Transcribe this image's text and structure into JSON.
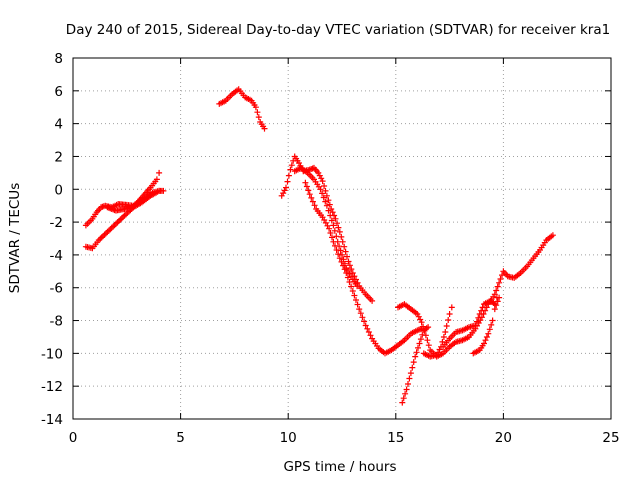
{
  "chart_data": {
    "type": "scatter",
    "title": "Day 240 of 2015, Sidereal Day-to-day VTEC variation (SDTVAR) for receiver kra1",
    "xlabel": "GPS time / hours",
    "ylabel": "SDTVAR / TECUs",
    "xlim": [
      0,
      25
    ],
    "ylim": [
      -14,
      8
    ],
    "xticks": [
      0,
      5,
      10,
      15,
      20,
      25
    ],
    "yticks": [
      -14,
      -12,
      -10,
      -8,
      -6,
      -4,
      -2,
      0,
      2,
      4,
      6,
      8
    ],
    "grid": true,
    "grid_style": "dotted",
    "legend": "none",
    "marker": "plus",
    "color": "#ff0000",
    "series": [
      {
        "segments": [
          [
            [
              0.6,
              -3.5
            ],
            [
              0.9,
              -3.6
            ],
            [
              1.2,
              -3.1
            ],
            [
              1.6,
              -2.6
            ],
            [
              2.0,
              -2.1
            ],
            [
              2.4,
              -1.6
            ],
            [
              2.8,
              -1.1
            ],
            [
              3.2,
              -0.5
            ],
            [
              3.6,
              0.1
            ],
            [
              3.9,
              0.6
            ],
            [
              4.0,
              1.0
            ]
          ],
          [
            [
              0.6,
              -2.2
            ],
            [
              0.9,
              -1.8
            ],
            [
              1.1,
              -1.4
            ],
            [
              1.3,
              -1.1
            ],
            [
              1.5,
              -1.0
            ],
            [
              1.8,
              -1.1
            ],
            [
              2.1,
              -0.9
            ],
            [
              2.5,
              -0.95
            ],
            [
              2.8,
              -1.0
            ],
            [
              3.1,
              -0.7
            ],
            [
              3.4,
              -0.5
            ],
            [
              3.7,
              -0.2
            ],
            [
              4.0,
              -0.1
            ],
            [
              4.2,
              -0.1
            ]
          ],
          [
            [
              1.6,
              -1.1
            ],
            [
              2.0,
              -1.3
            ],
            [
              2.4,
              -1.2
            ],
            [
              2.8,
              -1.1
            ],
            [
              3.2,
              -0.8
            ],
            [
              3.6,
              -0.4
            ],
            [
              4.0,
              -0.1
            ]
          ],
          [
            [
              6.8,
              5.2
            ],
            [
              7.1,
              5.4
            ],
            [
              7.4,
              5.8
            ],
            [
              7.7,
              6.1
            ],
            [
              8.0,
              5.6
            ],
            [
              8.3,
              5.4
            ],
            [
              8.5,
              5.0
            ],
            [
              8.7,
              4.1
            ],
            [
              8.9,
              3.7
            ]
          ],
          [
            [
              9.7,
              -0.4
            ],
            [
              9.9,
              0.1
            ],
            [
              10.1,
              1.2
            ],
            [
              10.3,
              2.0
            ],
            [
              10.5,
              1.6
            ],
            [
              10.7,
              1.1
            ],
            [
              11.0,
              1.2
            ],
            [
              11.2,
              1.3
            ],
            [
              11.4,
              1.0
            ],
            [
              11.6,
              0.5
            ],
            [
              11.8,
              -0.4
            ],
            [
              12.0,
              -1.2
            ],
            [
              12.2,
              -1.8
            ],
            [
              12.4,
              -2.6
            ],
            [
              12.6,
              -3.5
            ],
            [
              12.8,
              -4.4
            ],
            [
              13.0,
              -5.1
            ],
            [
              13.3,
              -5.9
            ],
            [
              13.6,
              -6.4
            ],
            [
              13.9,
              -6.8
            ]
          ],
          [
            [
              10.3,
              1.1
            ],
            [
              10.6,
              1.3
            ],
            [
              10.9,
              1.0
            ],
            [
              11.2,
              0.6
            ],
            [
              11.5,
              0.0
            ],
            [
              11.8,
              -1.0
            ],
            [
              12.1,
              -2.2
            ],
            [
              12.3,
              -3.2
            ],
            [
              12.5,
              -4.0
            ],
            [
              12.7,
              -4.8
            ],
            [
              13.0,
              -5.5
            ],
            [
              13.2,
              -5.9
            ]
          ],
          [
            [
              10.8,
              0.4
            ],
            [
              11.0,
              -0.3
            ],
            [
              11.3,
              -1.2
            ],
            [
              11.6,
              -1.7
            ],
            [
              11.9,
              -2.4
            ],
            [
              12.1,
              -3.2
            ],
            [
              12.4,
              -4.2
            ],
            [
              12.7,
              -5.1
            ],
            [
              13.0,
              -6.2
            ],
            [
              13.3,
              -7.3
            ],
            [
              13.6,
              -8.3
            ],
            [
              13.9,
              -9.1
            ],
            [
              14.2,
              -9.7
            ],
            [
              14.5,
              -10.0
            ],
            [
              14.8,
              -9.8
            ],
            [
              15.1,
              -9.5
            ],
            [
              15.4,
              -9.2
            ],
            [
              15.7,
              -8.8
            ],
            [
              16.0,
              -8.6
            ],
            [
              16.2,
              -8.5
            ]
          ],
          [
            [
              15.1,
              -7.2
            ],
            [
              15.4,
              -7.0
            ],
            [
              15.7,
              -7.3
            ],
            [
              16.0,
              -7.6
            ],
            [
              16.2,
              -8.1
            ],
            [
              16.4,
              -8.9
            ],
            [
              16.6,
              -9.8
            ],
            [
              16.9,
              -10.2
            ],
            [
              17.2,
              -10.0
            ],
            [
              17.5,
              -9.6
            ],
            [
              17.8,
              -9.3
            ],
            [
              18.1,
              -9.2
            ],
            [
              18.4,
              -9.0
            ],
            [
              18.7,
              -8.5
            ],
            [
              19.0,
              -7.8
            ],
            [
              19.3,
              -7.0
            ],
            [
              19.6,
              -6.4
            ],
            [
              19.8,
              -5.7
            ],
            [
              20.0,
              -5.0
            ],
            [
              20.2,
              -5.3
            ],
            [
              20.5,
              -5.4
            ],
            [
              20.8,
              -5.1
            ],
            [
              21.1,
              -4.7
            ],
            [
              21.4,
              -4.2
            ],
            [
              21.7,
              -3.7
            ],
            [
              22.0,
              -3.1
            ],
            [
              22.3,
              -2.8
            ]
          ],
          [
            [
              15.3,
              -13.0
            ],
            [
              15.5,
              -12.2
            ],
            [
              15.7,
              -11.2
            ],
            [
              15.9,
              -10.2
            ],
            [
              16.1,
              -9.4
            ],
            [
              16.3,
              -8.6
            ],
            [
              16.5,
              -8.4
            ]
          ],
          [
            [
              16.3,
              -10.0
            ],
            [
              16.6,
              -10.2
            ],
            [
              16.9,
              -10.1
            ],
            [
              17.1,
              -9.6
            ],
            [
              17.3,
              -8.7
            ],
            [
              17.5,
              -7.6
            ],
            [
              17.6,
              -7.2
            ]
          ],
          [
            [
              17.2,
              -9.6
            ],
            [
              17.5,
              -9.1
            ],
            [
              17.8,
              -8.7
            ],
            [
              18.1,
              -8.6
            ],
            [
              18.4,
              -8.4
            ],
            [
              18.7,
              -8.3
            ],
            [
              18.9,
              -7.6
            ],
            [
              19.1,
              -7.0
            ],
            [
              19.4,
              -6.8
            ],
            [
              19.6,
              -7.0
            ],
            [
              19.7,
              -6.6
            ]
          ],
          [
            [
              18.6,
              -10.0
            ],
            [
              18.9,
              -9.8
            ],
            [
              19.1,
              -9.4
            ],
            [
              19.3,
              -8.8
            ],
            [
              19.5,
              -8.0
            ],
            [
              19.6,
              -7.3
            ],
            [
              19.8,
              -6.6
            ]
          ]
        ]
      }
    ]
  }
}
